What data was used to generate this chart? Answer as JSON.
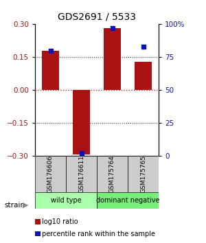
{
  "title": "GDS2691 / 5533",
  "samples": [
    "GSM176606",
    "GSM176611",
    "GSM175764",
    "GSM175765"
  ],
  "log10_ratio": [
    0.18,
    -0.295,
    0.283,
    0.13
  ],
  "percentile": [
    80,
    2,
    97,
    83
  ],
  "ylim_left": [
    -0.3,
    0.3
  ],
  "ylim_right": [
    0,
    100
  ],
  "yticks_left": [
    -0.3,
    -0.15,
    0,
    0.15,
    0.3
  ],
  "yticks_right": [
    0,
    25,
    50,
    75,
    100
  ],
  "ytick_labels_right": [
    "0",
    "25",
    "50",
    "75",
    "100%"
  ],
  "bar_color": "#aa1111",
  "dot_color": "#1111bb",
  "zero_line_color": "#cc2222",
  "dotted_color": "#333333",
  "groups": [
    {
      "label": "wild type",
      "indices": [
        0,
        1
      ],
      "color": "#aaffaa"
    },
    {
      "label": "dominant negative",
      "indices": [
        2,
        3
      ],
      "color": "#77ee77"
    }
  ],
  "strain_label": "strain",
  "legend": [
    {
      "color": "#aa1111",
      "label": "log10 ratio"
    },
    {
      "color": "#1111bb",
      "label": "percentile rank within the sample"
    }
  ],
  "bg_color": "#ffffff",
  "sample_box_color": "#cccccc",
  "bar_width": 0.55
}
